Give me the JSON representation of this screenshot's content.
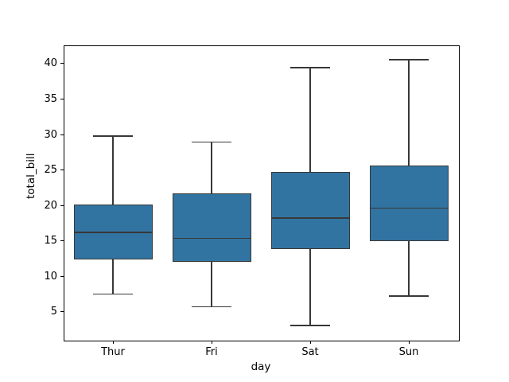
{
  "chart_data": {
    "type": "box",
    "title": "",
    "xlabel": "day",
    "ylabel": "total_bill",
    "categories": [
      "Thur",
      "Fri",
      "Sat",
      "Sun"
    ],
    "series": [
      {
        "name": "Thur",
        "whisker_low": 7.51,
        "q1": 12.44,
        "median": 16.2,
        "q3": 20.16,
        "whisker_high": 29.8
      },
      {
        "name": "Fri",
        "whisker_low": 5.75,
        "q1": 12.09,
        "median": 15.38,
        "q3": 21.75,
        "whisker_high": 28.97
      },
      {
        "name": "Sat",
        "whisker_low": 3.07,
        "q1": 13.91,
        "median": 18.24,
        "q3": 24.74,
        "whisker_high": 39.42
      },
      {
        "name": "Sun",
        "whisker_low": 7.25,
        "q1": 14.99,
        "median": 19.63,
        "q3": 25.6,
        "whisker_high": 40.55
      }
    ],
    "yticks": [
      5,
      10,
      15,
      20,
      25,
      30,
      35,
      40
    ],
    "ylim": [
      1.07,
      42.58
    ],
    "grid": false,
    "legend": "none",
    "fliers_shown": false,
    "colors": {
      "box_fill": "#3274a1",
      "box_edge": "#383838",
      "median": "#383838",
      "whisker": "#383838",
      "spine": "#000000",
      "text": "#000000",
      "background": "#ffffff"
    }
  }
}
